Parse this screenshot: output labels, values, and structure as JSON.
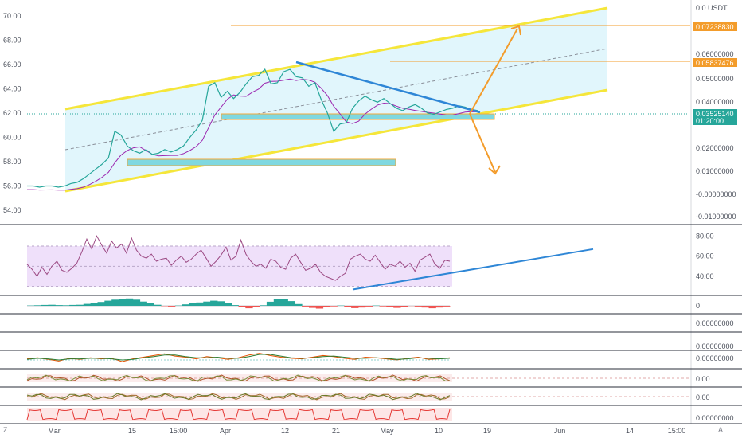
{
  "chart_data": {
    "type": "line",
    "symbol_quote": "USDT",
    "main_axis_labels": [
      "70.00",
      "68.00",
      "66.00",
      "64.00",
      "62.00",
      "60.00",
      "58.00",
      "56.00",
      "54.00"
    ],
    "right_axis_labels": [
      "0.0 USDT",
      "0.07238830",
      "0.06000000",
      "0.05837476",
      "0.05000000",
      "0.04000000",
      "0.03525140",
      "01:20:00",
      "0.02000000",
      "0.01000000",
      "-0.00000000",
      "-0.01000000"
    ],
    "time_labels": [
      "Mar",
      "15",
      "15:00",
      "Apr",
      "12",
      "21",
      "May",
      "10",
      "19",
      "Jun",
      "14",
      "15:00"
    ],
    "ylim": [
      53,
      71
    ],
    "price": [
      56,
      56,
      55.9,
      56,
      56,
      55.9,
      56,
      56.2,
      56.3,
      56.6,
      57,
      57.4,
      57.8,
      58.3,
      60.5,
      60.2,
      59.3,
      58.9,
      58.7,
      59,
      58.6,
      58.7,
      59,
      58.8,
      59,
      59.3,
      60,
      60.6,
      61.4,
      64.2,
      64.5,
      63.3,
      63.8,
      63.2,
      63.7,
      64.4,
      65,
      65.1,
      65.6,
      64.4,
      64.5,
      65.4,
      65.6,
      65,
      64.9,
      64.2,
      64.5,
      63.1,
      62,
      60.5,
      61.1,
      61.2,
      62.4,
      63,
      63.4,
      63.1,
      62.9,
      63.2,
      62.8,
      62.4,
      62.2,
      62.5,
      62.7,
      62.4,
      62,
      61.9,
      62.1,
      62.3,
      62.4,
      62.6,
      62.5,
      62.3,
      62.2
    ],
    "price_color": "#26a69a",
    "ichimoku_color": "#9c27b0",
    "channel_color": "#f5e63a",
    "channel_fill": "#d9f4fb",
    "trendline_color": "#2e86d6",
    "arrow_color": "#f39c2b",
    "support_zone_color": "#7fd8e0",
    "rsi": {
      "labels": [
        "80.00",
        "60.00",
        "40.00"
      ],
      "ylim": [
        25,
        85
      ],
      "band": [
        30,
        70
      ],
      "values": [
        52,
        47,
        40,
        49,
        42,
        50,
        55,
        46,
        44,
        48,
        53,
        64,
        77,
        67,
        80,
        71,
        63,
        75,
        68,
        72,
        63,
        78,
        66,
        60,
        58,
        62,
        55,
        57,
        58,
        51,
        56,
        60,
        54,
        57,
        62,
        66,
        58,
        50,
        55,
        61,
        69,
        56,
        60,
        76,
        62,
        55,
        50,
        52,
        48,
        57,
        55,
        49,
        47,
        58,
        62,
        54,
        46,
        48,
        52,
        44,
        40,
        38,
        36,
        40,
        43,
        57,
        60,
        62,
        57,
        55,
        61,
        54,
        47,
        52,
        50,
        55,
        49,
        53,
        45,
        56,
        59,
        62,
        52,
        48,
        56,
        55
      ],
      "color": "#9c4a84",
      "band_fill": "#efe0fa"
    },
    "macd": {
      "label": "0",
      "hist": [
        0.2,
        0.3,
        0.5,
        0.6,
        0.4,
        0.3,
        0.5,
        0.6,
        1.1,
        1.7,
        2.2,
        2.9,
        3.5,
        3.8,
        4.2,
        3.5,
        2.4,
        1.4,
        0.6,
        -0.2,
        -0.4,
        0.2,
        0.8,
        1.4,
        1.9,
        2.4,
        2.9,
        2.6,
        1.5,
        0.4,
        -0.7,
        -1.4,
        -0.9,
        0.3,
        2.3,
        3.8,
        4.0,
        2.7,
        1.0,
        -0.4,
        -1.2,
        -1.6,
        -0.9,
        -0.3,
        0.2,
        -0.6,
        -1.3,
        -1.0,
        -0.4,
        0.2,
        -0.3,
        -0.8,
        -1.2,
        -0.6,
        -0.1,
        -0.4,
        -1.0,
        -1.4,
        -1.0,
        -0.4
      ],
      "pos_color": "#26a69a",
      "neg_color": "#ef5350"
    },
    "blank_pane": {
      "label": "0.00000000"
    },
    "stoch_pane": {
      "labels": [
        "0.00000000",
        "0.00000000"
      ],
      "series": [
        {
          "color": "#e65100",
          "values": [
            0.2,
            0.4,
            0.1,
            -0.2,
            0.3,
            0.1,
            0.4,
            0.2,
            0.3,
            -0.3,
            0.2,
            0.5,
            0.8,
            1.1,
            0.7,
            0.5,
            0.2,
            0.6,
            0.4,
            0.1,
            0.4,
            0.9,
            1.2,
            0.8,
            0.5,
            0.3,
            0.2,
            0.5,
            0.8,
            0.6,
            0.3,
            0.1,
            0.5,
            0.4,
            0.2,
            0.0,
            0.3,
            0.5,
            0.1,
            0.2,
            0.4
          ]
        },
        {
          "color": "#2e7d32",
          "values": [
            0.1,
            0.3,
            0.2,
            0.0,
            0.2,
            0.2,
            0.3,
            0.3,
            0.2,
            0.0,
            0.1,
            0.4,
            0.6,
            0.9,
            0.9,
            0.6,
            0.4,
            0.4,
            0.5,
            0.3,
            0.3,
            0.6,
            1.0,
            1.0,
            0.7,
            0.4,
            0.3,
            0.4,
            0.6,
            0.7,
            0.5,
            0.3,
            0.3,
            0.4,
            0.3,
            0.1,
            0.2,
            0.4,
            0.3,
            0.2,
            0.3
          ]
        }
      ]
    },
    "osc1": {
      "label": "0.00",
      "colors": [
        "#b0542a",
        "#7b8c3a"
      ]
    },
    "osc2": {
      "label": "0.00",
      "colors": [
        "#a26a2c",
        "#6b7b2a"
      ]
    },
    "wave_pane": {
      "label": "0.00000000",
      "color": "#e53935",
      "fill": "#fde6e6"
    }
  },
  "corner_z": "Z",
  "corner_a": "A"
}
